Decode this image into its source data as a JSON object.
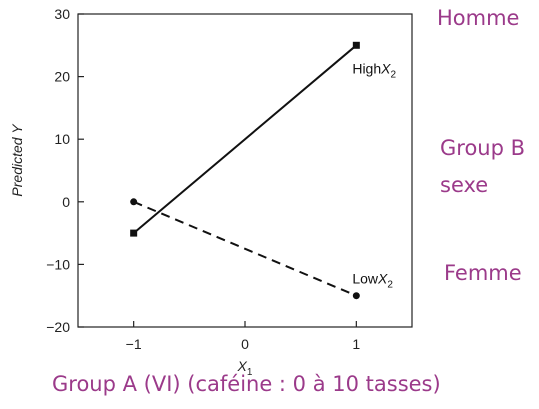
{
  "chart_data": {
    "type": "line",
    "xlabel": "X1",
    "ylabel": "Predicted Y",
    "xlim": [
      -1.5,
      1.5
    ],
    "ylim": [
      -20,
      30
    ],
    "x_ticks": [
      -1,
      0,
      1
    ],
    "y_ticks": [
      -20,
      -10,
      0,
      10,
      20,
      30
    ],
    "x_tick_labels": [
      "−1",
      "0",
      "1"
    ],
    "y_tick_labels": [
      "−20",
      "−10",
      "0",
      "10",
      "20",
      "30"
    ],
    "grid": false,
    "series": [
      {
        "name": "High X2",
        "label_main": "High",
        "label_var": "X",
        "label_sub": "2",
        "x": [
          -1,
          1
        ],
        "y": [
          -5,
          25
        ],
        "line_style": "solid",
        "marker": "square",
        "color": "#111111"
      },
      {
        "name": "Low X2",
        "label_main": "Low",
        "label_var": "X",
        "label_sub": "2",
        "x": [
          -1,
          1
        ],
        "y": [
          0,
          -15
        ],
        "line_style": "dashed",
        "marker": "circle",
        "color": "#111111"
      }
    ]
  },
  "annotations": {
    "homme": "Homme",
    "group_b": "Group B",
    "sexe": "sexe",
    "femme": "Femme",
    "group_a": "Group A (VI) (caféine : 0 à 10 tasses)",
    "color": "#9b3a8a"
  }
}
